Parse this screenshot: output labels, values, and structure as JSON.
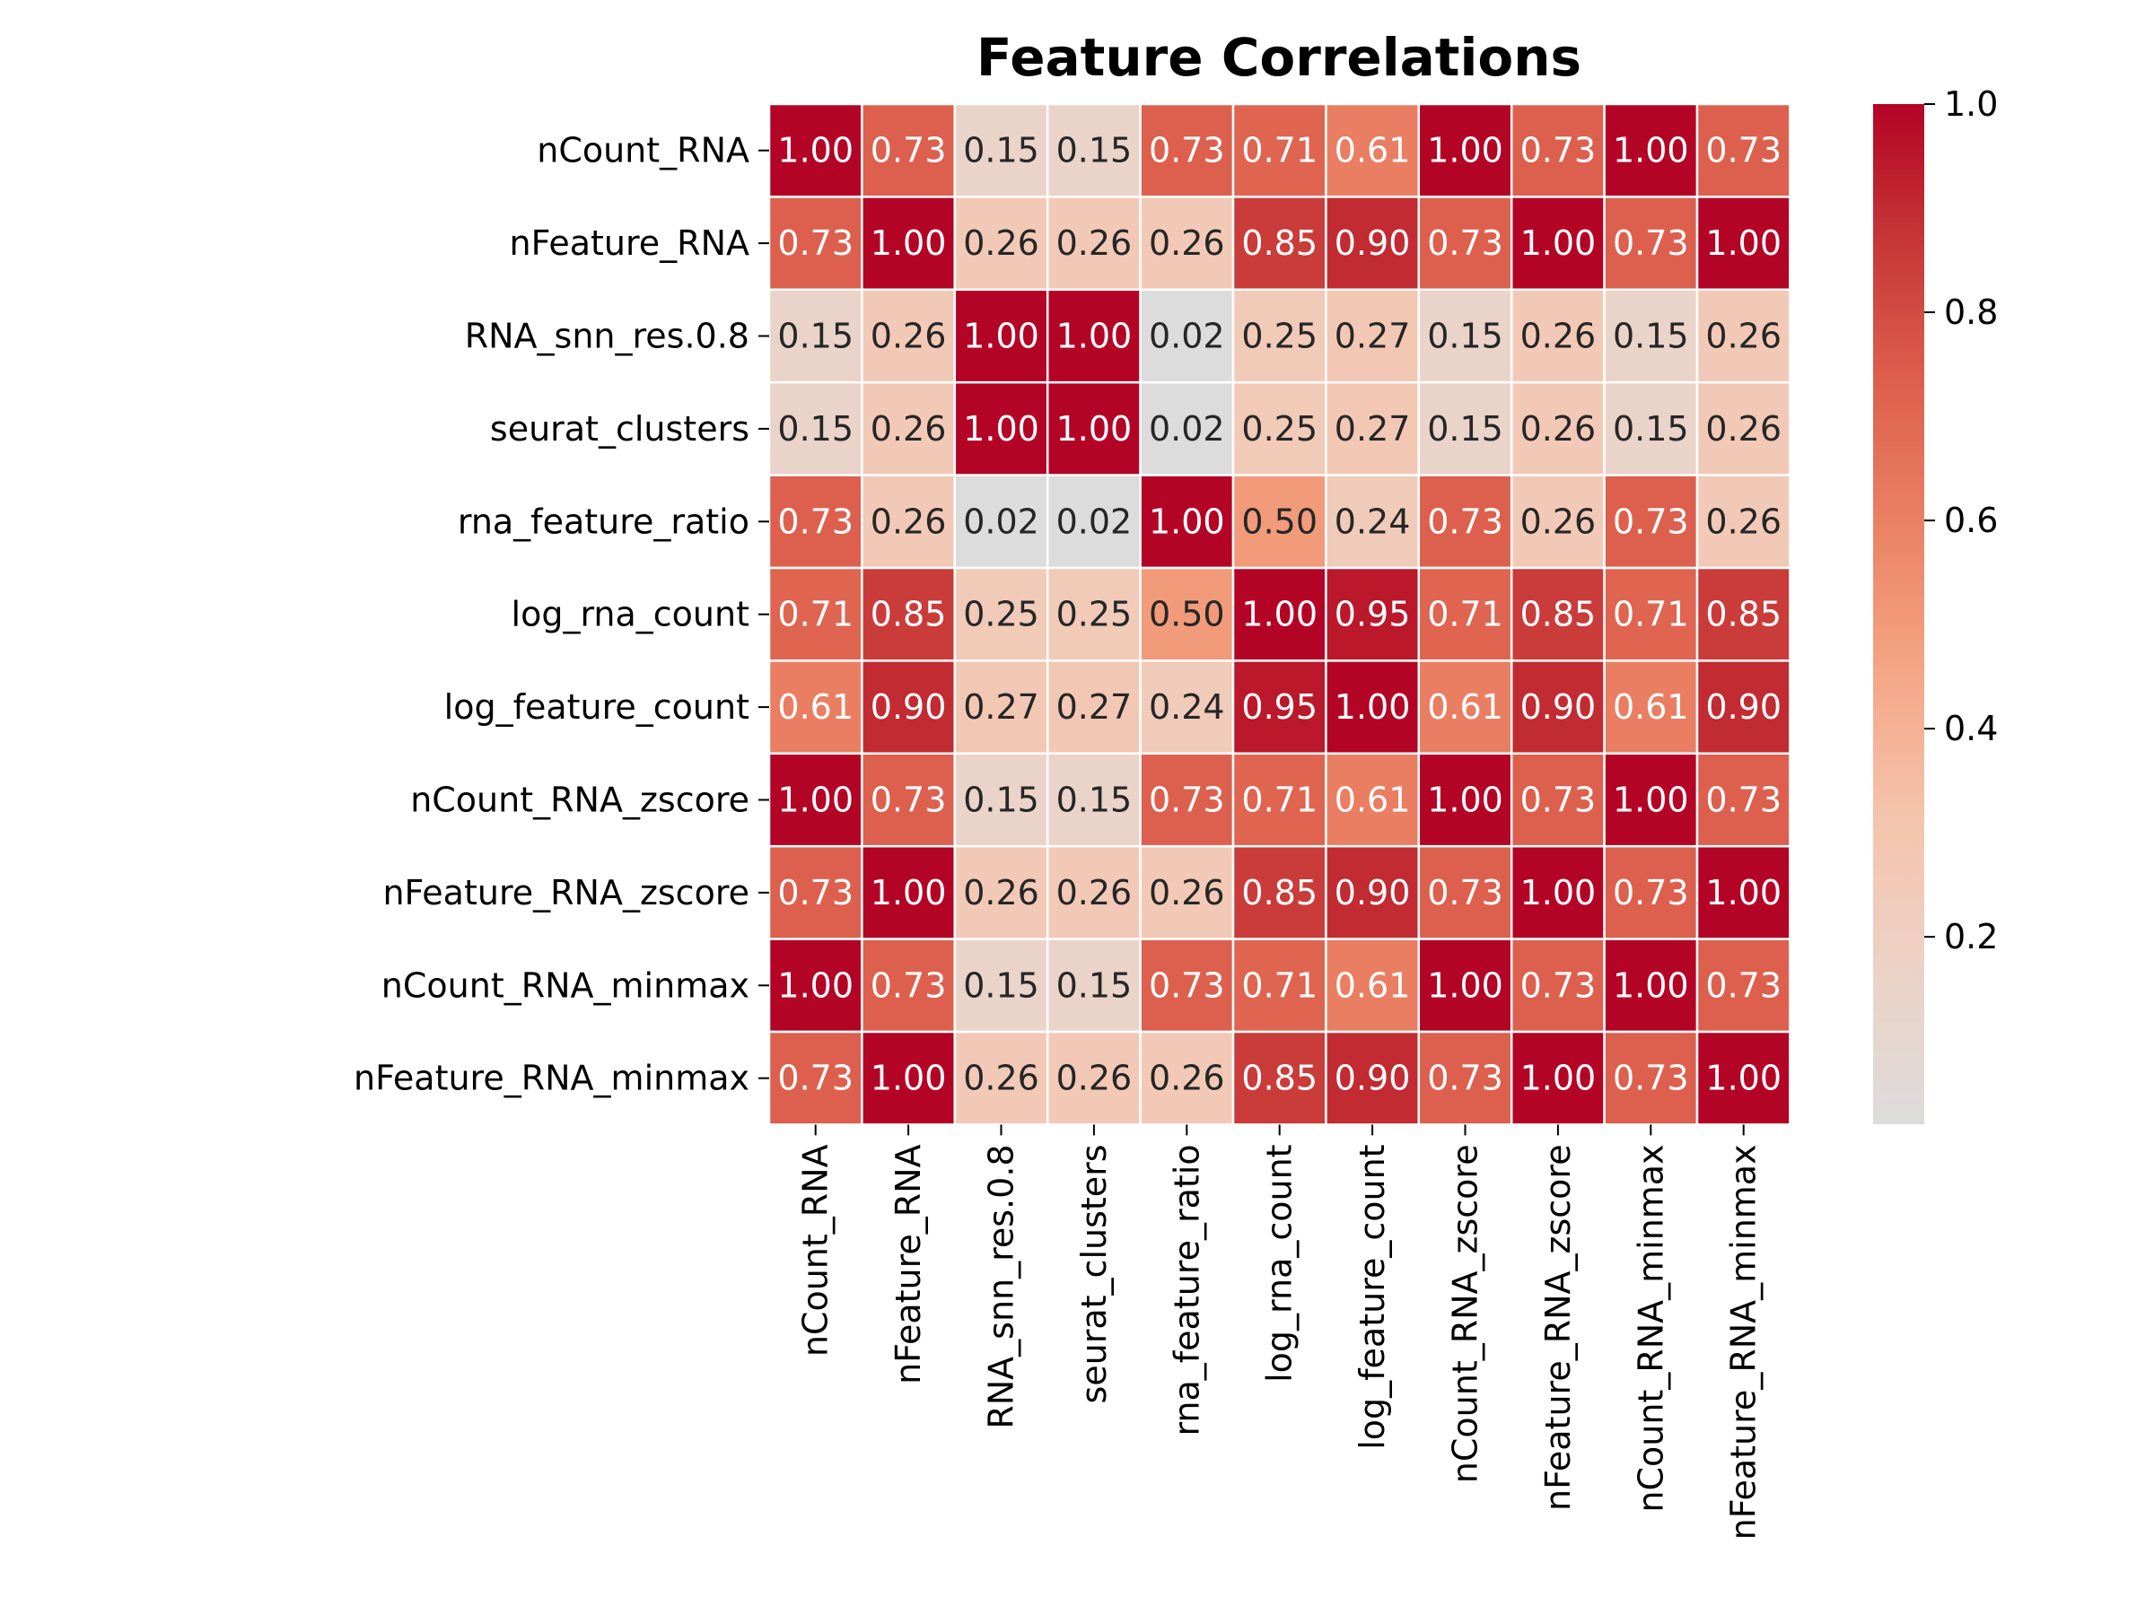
{
  "chart_data": {
    "type": "heatmap",
    "title": "Feature Correlations",
    "rows": [
      "nCount_RNA",
      "nFeature_RNA",
      "RNA_snn_res.0.8",
      "seurat_clusters",
      "rna_feature_ratio",
      "log_rna_count",
      "log_feature_count",
      "nCount_RNA_zscore",
      "nFeature_RNA_zscore",
      "nCount_RNA_minmax",
      "nFeature_RNA_minmax"
    ],
    "columns": [
      "nCount_RNA",
      "nFeature_RNA",
      "RNA_snn_res.0.8",
      "seurat_clusters",
      "rna_feature_ratio",
      "log_rna_count",
      "log_feature_count",
      "nCount_RNA_zscore",
      "nFeature_RNA_zscore",
      "nCount_RNA_minmax",
      "nFeature_RNA_minmax"
    ],
    "values": [
      [
        1.0,
        0.73,
        0.15,
        0.15,
        0.73,
        0.71,
        0.61,
        1.0,
        0.73,
        1.0,
        0.73
      ],
      [
        0.73,
        1.0,
        0.26,
        0.26,
        0.26,
        0.85,
        0.9,
        0.73,
        1.0,
        0.73,
        1.0
      ],
      [
        0.15,
        0.26,
        1.0,
        1.0,
        0.02,
        0.25,
        0.27,
        0.15,
        0.26,
        0.15,
        0.26
      ],
      [
        0.15,
        0.26,
        1.0,
        1.0,
        0.02,
        0.25,
        0.27,
        0.15,
        0.26,
        0.15,
        0.26
      ],
      [
        0.73,
        0.26,
        0.02,
        0.02,
        1.0,
        0.5,
        0.24,
        0.73,
        0.26,
        0.73,
        0.26
      ],
      [
        0.71,
        0.85,
        0.25,
        0.25,
        0.5,
        1.0,
        0.95,
        0.71,
        0.85,
        0.71,
        0.85
      ],
      [
        0.61,
        0.9,
        0.27,
        0.27,
        0.24,
        0.95,
        1.0,
        0.61,
        0.9,
        0.61,
        0.9
      ],
      [
        1.0,
        0.73,
        0.15,
        0.15,
        0.73,
        0.71,
        0.61,
        1.0,
        0.73,
        1.0,
        0.73
      ],
      [
        0.73,
        1.0,
        0.26,
        0.26,
        0.26,
        0.85,
        0.9,
        0.73,
        1.0,
        0.73,
        1.0
      ],
      [
        1.0,
        0.73,
        0.15,
        0.15,
        0.73,
        0.71,
        0.61,
        1.0,
        0.73,
        1.0,
        0.73
      ],
      [
        0.73,
        1.0,
        0.26,
        0.26,
        0.26,
        0.85,
        0.9,
        0.73,
        1.0,
        0.73,
        1.0
      ]
    ],
    "value_format": "2 decimals",
    "colorscale": "coolwarm-red",
    "colorbar": {
      "range": [
        0.02,
        1.0
      ],
      "ticks": [
        0.2,
        0.4,
        0.6,
        0.8,
        1.0
      ],
      "tick_labels": [
        "0.2",
        "0.4",
        "0.6",
        "0.8",
        "1.0"
      ]
    },
    "grid_lines": "white",
    "legend": "colorbar-right"
  }
}
